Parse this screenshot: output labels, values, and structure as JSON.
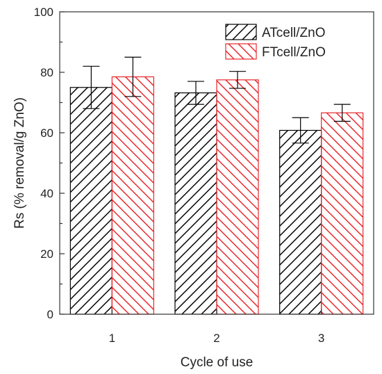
{
  "chart_data": {
    "type": "bar",
    "title": "",
    "xlabel": "Cycle of use",
    "ylabel": "Rs (% removal/g ZnO)",
    "categories": [
      "1",
      "2",
      "3"
    ],
    "ylim": [
      0,
      100
    ],
    "yticks": [
      0,
      20,
      40,
      60,
      80,
      100
    ],
    "grid": false,
    "legend_position": "top-right",
    "series": [
      {
        "name": "ATcell/ZnO",
        "values": [
          75.0,
          73.2,
          60.8
        ],
        "errors": [
          7.0,
          3.8,
          4.2
        ],
        "color": "#000000",
        "pattern": "hatch-forward"
      },
      {
        "name": "FTcell/ZnO",
        "values": [
          78.5,
          77.5,
          66.6
        ],
        "errors": [
          6.5,
          2.8,
          2.8
        ],
        "color": "#e8262b",
        "pattern": "hatch-backward"
      }
    ]
  }
}
